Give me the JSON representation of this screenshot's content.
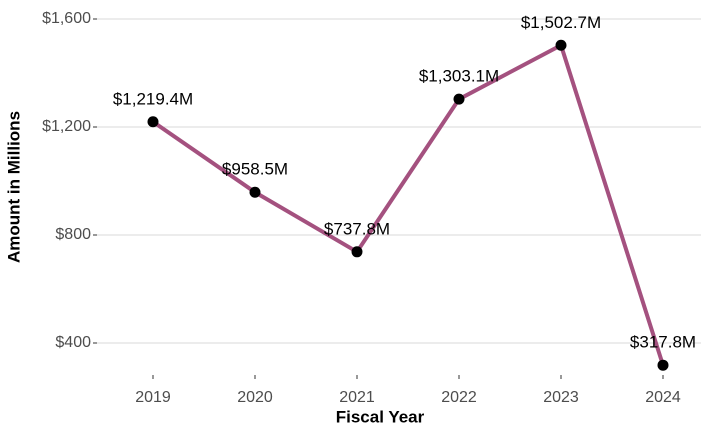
{
  "chart_data": {
    "type": "line",
    "x_label": "Fiscal Year",
    "y_label": "Amount in Millions",
    "categories": [
      "2019",
      "2020",
      "2021",
      "2022",
      "2023",
      "2024"
    ],
    "series": [
      {
        "name": "Amount",
        "color": "#a4517f",
        "values": [
          1219.4,
          958.5,
          737.8,
          1303.1,
          1502.7,
          317.8
        ],
        "value_labels": [
          "$1,219.4M",
          "$958.5M",
          "$737.8M",
          "$1,303.1M",
          "$1,502.7M",
          "$317.8M"
        ]
      }
    ],
    "marker_color": "#000000",
    "ylim": [
      281.5,
      1670.4
    ],
    "yticks": [
      {
        "value": 400,
        "label": "$400"
      },
      {
        "value": 800,
        "label": "$800"
      },
      {
        "value": 1200,
        "label": "$1,200"
      },
      {
        "value": 1600,
        "label": "$1,600"
      }
    ],
    "grid": true
  }
}
